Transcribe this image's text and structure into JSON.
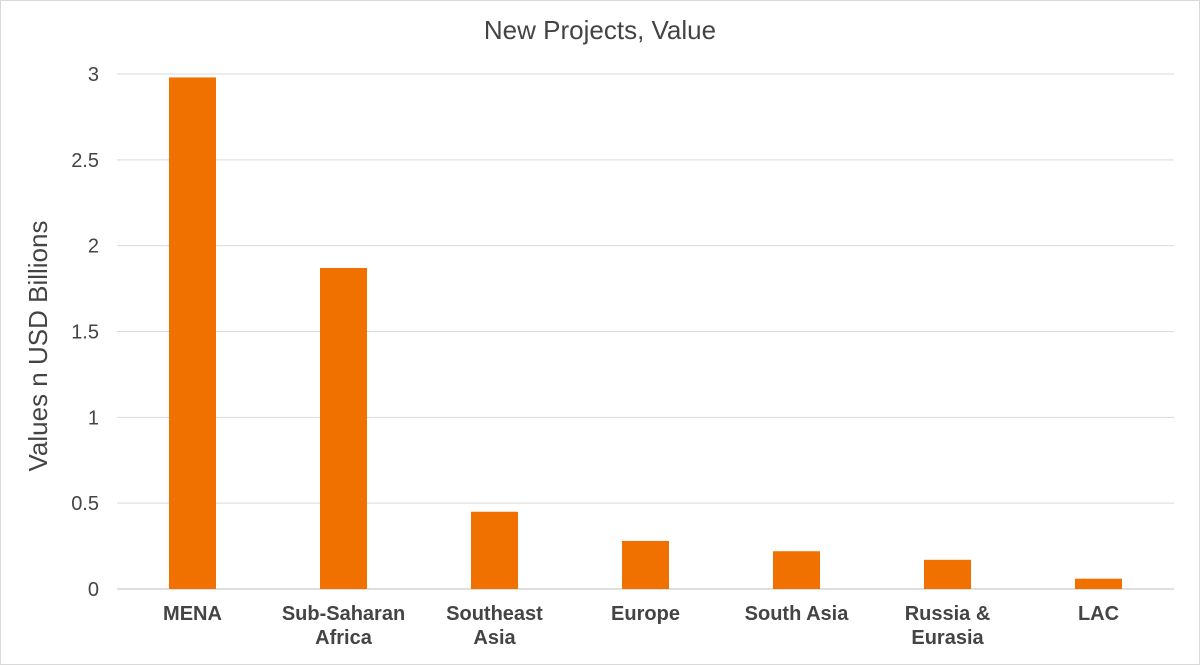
{
  "chart_data": {
    "type": "bar",
    "title": "New Projects, Value",
    "xlabel": "",
    "ylabel": "Values n USD Billions",
    "categories": [
      [
        "MENA"
      ],
      [
        "Sub-Saharan",
        "Africa"
      ],
      [
        "Southeast",
        "Asia"
      ],
      [
        "Europe"
      ],
      [
        "South Asia"
      ],
      [
        "Russia &",
        "Eurasia"
      ],
      [
        "LAC"
      ]
    ],
    "values": [
      2.98,
      1.87,
      0.45,
      0.28,
      0.22,
      0.17,
      0.06
    ],
    "ylim": [
      0,
      3
    ],
    "yticks": [
      "0",
      "0.5",
      "1",
      "1.5",
      "2",
      "2.5",
      "3"
    ],
    "grid": true,
    "legend": "none",
    "bar_color": "#f07000"
  }
}
